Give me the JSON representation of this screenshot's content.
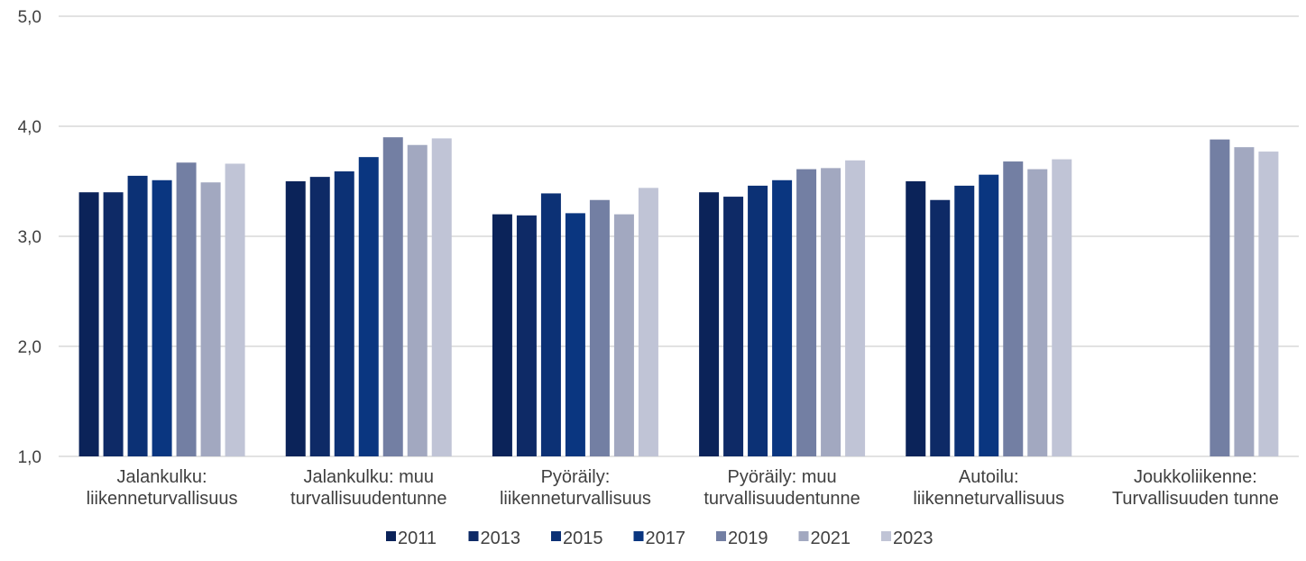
{
  "chart_data": {
    "type": "bar",
    "categories": [
      [
        "Jalankulku:",
        "liikenneturvallisuus"
      ],
      [
        "Jalankulku: muu",
        "turvallisuudentunne"
      ],
      [
        "Pyöräily:",
        "liikenneturvallisuus"
      ],
      [
        "Pyöräily: muu",
        "turvallisuudentunne"
      ],
      [
        "Autoilu:",
        "liikenneturvallisuus"
      ],
      [
        "Joukkoliikenne:",
        "Turvallisuuden tunne"
      ]
    ],
    "series": [
      {
        "name": "2011",
        "color": "#0b2359",
        "values": [
          3.4,
          3.5,
          3.2,
          3.4,
          3.5,
          null
        ]
      },
      {
        "name": "2013",
        "color": "#0e2a66",
        "values": [
          3.4,
          3.54,
          3.19,
          3.36,
          3.33,
          null
        ]
      },
      {
        "name": "2015",
        "color": "#0c3175",
        "values": [
          3.55,
          3.59,
          3.39,
          3.46,
          3.46,
          null
        ]
      },
      {
        "name": "2017",
        "color": "#0a3680",
        "values": [
          3.51,
          3.72,
          3.21,
          3.51,
          3.56,
          null
        ]
      },
      {
        "name": "2019",
        "color": "#737fa3",
        "values": [
          3.67,
          3.9,
          3.33,
          3.61,
          3.68,
          3.88
        ]
      },
      {
        "name": "2021",
        "color": "#a2a8c0",
        "values": [
          3.49,
          3.83,
          3.2,
          3.62,
          3.61,
          3.81
        ]
      },
      {
        "name": "2023",
        "color": "#c0c4d6",
        "values": [
          3.66,
          3.89,
          3.44,
          3.69,
          3.7,
          3.77
        ]
      }
    ],
    "ylim": [
      1.0,
      5.0
    ],
    "yticks": [
      "1,0",
      "2,0",
      "3,0",
      "4,0",
      "5,0"
    ],
    "ytick_values": [
      1,
      2,
      3,
      4,
      5
    ],
    "grid": true,
    "legend_position": "bottom"
  }
}
